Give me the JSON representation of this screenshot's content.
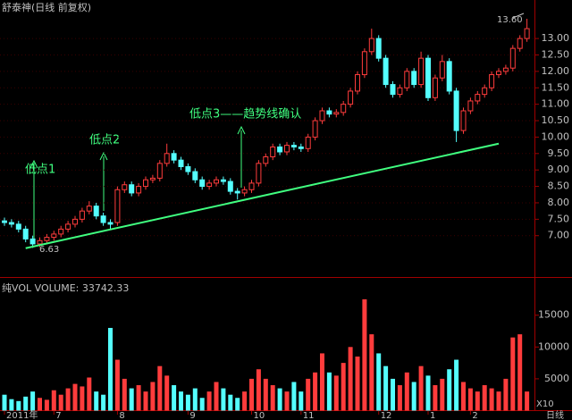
{
  "chart_data": {
    "type": "candlestick",
    "title": "舒泰神(日线 前复权)",
    "open": [
      7.45,
      7.4,
      7.35,
      7.2,
      6.9,
      6.75,
      6.85,
      6.95,
      7.05,
      7.2,
      7.35,
      7.5,
      7.75,
      7.9,
      7.6,
      7.4,
      7.4,
      8.4,
      8.55,
      8.3,
      8.5,
      8.7,
      8.75,
      9.2,
      9.5,
      9.3,
      9.1,
      8.95,
      8.7,
      8.5,
      8.6,
      8.7,
      8.65,
      8.35,
      8.3,
      8.4,
      8.6,
      9.2,
      9.4,
      9.7,
      9.55,
      9.75,
      9.7,
      9.65,
      10.0,
      10.5,
      10.8,
      10.7,
      10.75,
      11.0,
      11.4,
      11.9,
      12.6,
      13.0,
      12.4,
      11.6,
      11.3,
      11.5,
      12.0,
      11.6,
      12.4,
      11.2,
      11.8,
      12.3,
      11.4,
      10.2,
      10.8,
      11.1,
      11.3,
      11.5,
      11.9,
      12.0,
      12.1,
      12.7,
      13.0
    ],
    "high": [
      7.55,
      7.5,
      7.45,
      7.3,
      7.0,
      6.95,
      7.05,
      7.15,
      7.3,
      7.45,
      7.6,
      7.85,
      8.05,
      8.0,
      7.7,
      7.5,
      8.5,
      8.65,
      8.65,
      8.6,
      8.8,
      8.85,
      9.3,
      9.8,
      9.6,
      9.4,
      9.2,
      9.05,
      8.8,
      8.7,
      8.8,
      8.8,
      8.75,
      8.45,
      8.5,
      8.7,
      9.3,
      9.5,
      9.8,
      9.8,
      9.85,
      9.85,
      9.8,
      10.1,
      10.6,
      10.9,
      10.9,
      10.85,
      11.1,
      11.5,
      12.0,
      12.7,
      13.3,
      13.1,
      12.5,
      11.7,
      11.6,
      12.1,
      12.1,
      12.6,
      12.5,
      11.9,
      12.5,
      12.4,
      11.5,
      10.9,
      11.2,
      11.4,
      11.6,
      12.0,
      12.1,
      12.2,
      12.8,
      13.1,
      13.6
    ],
    "low": [
      7.3,
      7.25,
      7.1,
      6.8,
      6.63,
      6.65,
      6.75,
      6.85,
      6.95,
      7.1,
      7.25,
      7.4,
      7.65,
      7.5,
      7.3,
      7.2,
      7.3,
      8.3,
      8.2,
      8.2,
      8.4,
      8.6,
      8.65,
      9.1,
      9.2,
      9.0,
      8.85,
      8.6,
      8.4,
      8.4,
      8.5,
      8.55,
      8.25,
      8.1,
      8.2,
      8.3,
      8.5,
      9.1,
      9.3,
      9.45,
      9.45,
      9.6,
      9.55,
      9.55,
      9.9,
      10.4,
      10.6,
      10.6,
      10.65,
      10.9,
      11.3,
      11.8,
      12.5,
      12.3,
      11.5,
      11.2,
      11.2,
      11.4,
      11.5,
      11.5,
      11.1,
      11.1,
      11.7,
      11.3,
      9.85,
      10.1,
      10.7,
      11.0,
      11.2,
      11.4,
      11.8,
      11.9,
      12.0,
      12.6,
      12.9
    ],
    "close": [
      7.4,
      7.35,
      7.2,
      6.9,
      6.75,
      6.85,
      6.95,
      7.05,
      7.2,
      7.35,
      7.5,
      7.75,
      7.9,
      7.6,
      7.4,
      7.35,
      8.4,
      8.55,
      8.3,
      8.5,
      8.7,
      8.75,
      9.2,
      9.5,
      9.3,
      9.1,
      8.95,
      8.7,
      8.5,
      8.6,
      8.7,
      8.65,
      8.35,
      8.3,
      8.4,
      8.6,
      9.2,
      9.4,
      9.7,
      9.55,
      9.75,
      9.7,
      9.65,
      10.0,
      10.5,
      10.8,
      10.7,
      10.75,
      11.0,
      11.4,
      11.9,
      12.6,
      13.0,
      12.4,
      11.6,
      11.3,
      11.5,
      12.0,
      11.6,
      12.4,
      11.2,
      11.8,
      12.3,
      11.4,
      10.2,
      10.8,
      11.1,
      11.3,
      11.5,
      11.9,
      12.0,
      12.1,
      12.7,
      13.0,
      13.3
    ],
    "volume": [
      2500,
      1800,
      1500,
      2200,
      3000,
      2000,
      1700,
      3200,
      2500,
      3500,
      4200,
      3800,
      5200,
      3000,
      2500,
      13000,
      8000,
      5000,
      3500,
      4000,
      3000,
      4500,
      7000,
      5500,
      4000,
      3000,
      2500,
      3500,
      2000,
      3000,
      4500,
      3500,
      2500,
      2000,
      3000,
      5000,
      6500,
      5000,
      4000,
      3500,
      3000,
      4500,
      3000,
      5000,
      6000,
      9000,
      6000,
      5500,
      7500,
      10000,
      8500,
      17500,
      12000,
      9000,
      7000,
      5000,
      4000,
      6000,
      4500,
      7000,
      5500,
      4000,
      5000,
      6500,
      8000,
      4500,
      3500,
      3000,
      4000,
      3500,
      3000,
      5000,
      11500,
      12000,
      3000
    ],
    "up_color": "#ff3c3c",
    "down_color": "#54ffff",
    "ylim": [
      6.15,
      13.9
    ],
    "yticks": [
      {
        "value": 7,
        "label": "7.00"
      },
      {
        "value": 7.5,
        "label": "7.50"
      },
      {
        "value": 8,
        "label": "8.00"
      },
      {
        "value": 8.5,
        "label": "8.50"
      },
      {
        "value": 9,
        "label": "9.00"
      },
      {
        "value": 9.5,
        "label": "9.50"
      },
      {
        "value": 10,
        "label": "10.00"
      },
      {
        "value": 10.5,
        "label": "10.50"
      },
      {
        "value": 11,
        "label": "11.00"
      },
      {
        "value": 11.5,
        "label": "11.50"
      },
      {
        "value": 12,
        "label": "12.00"
      },
      {
        "value": 12.5,
        "label": "12.50"
      },
      {
        "value": 13,
        "label": "13.00"
      }
    ],
    "y2lim": [
      0,
      20300
    ],
    "y2ticks": [
      5000,
      10000,
      15000
    ],
    "volume_label": "纯VOL VOLUME: 33742.33",
    "volume_unit": "X10",
    "period_label": "日线",
    "xlabels": [
      {
        "value": 0,
        "label": "2011年"
      },
      {
        "value": 7,
        "label": "7"
      },
      {
        "value": 16,
        "label": "8"
      },
      {
        "value": 26,
        "label": "9"
      },
      {
        "value": 35,
        "label": "10"
      },
      {
        "value": 42,
        "label": "11"
      },
      {
        "value": 53,
        "label": "12"
      },
      {
        "value": 60,
        "label": "1"
      },
      {
        "value": 66,
        "label": "2"
      }
    ],
    "trendline": {
      "x": [
        3,
        70
      ],
      "y": [
        6.62,
        9.8
      ],
      "color": "#40ff80"
    },
    "low_label": "6.63",
    "high_label": "13.60",
    "annotations": [
      "低点1",
      "低点2",
      "低点3——趋势线确认"
    ],
    "annotation_color": "#40ff80"
  }
}
